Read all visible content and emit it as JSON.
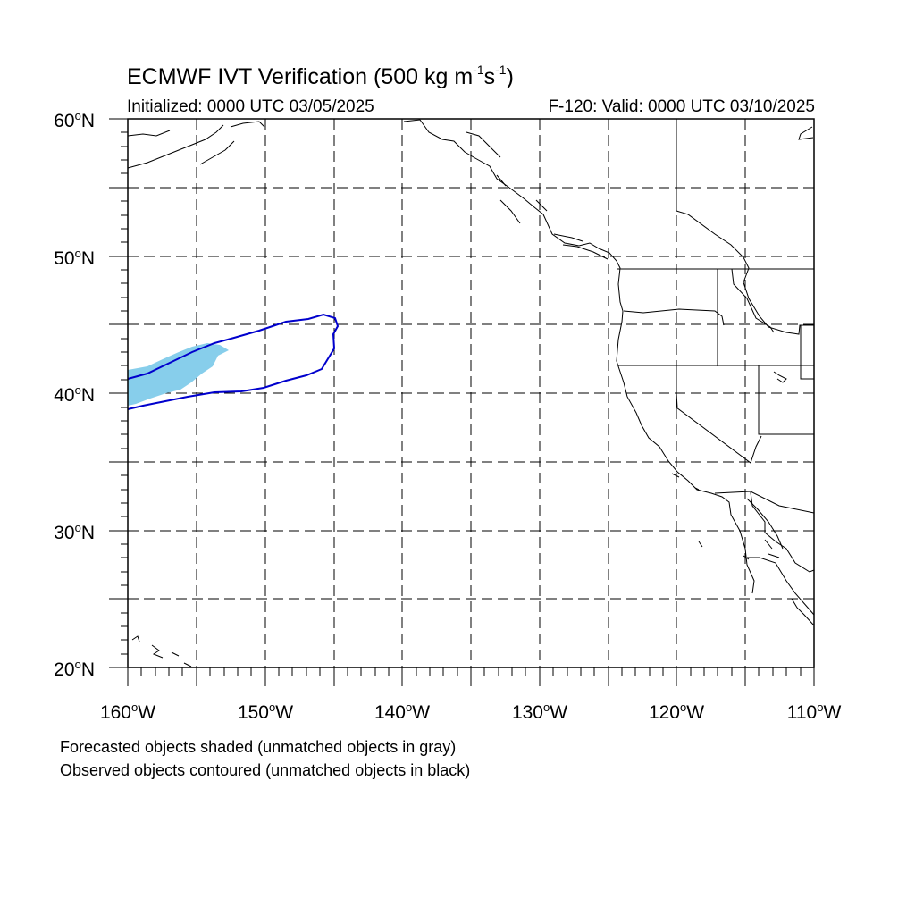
{
  "title": {
    "main": "ECMWF IVT Verification (500 kg m",
    "exp1": "-1",
    "mid": "s",
    "exp2": "-1",
    "close": ")"
  },
  "subtitle_left": "Initialized: 0000 UTC 03/05/2025",
  "subtitle_right": "F-120: Valid: 0000 UTC 03/10/2025",
  "lat_labels": [
    {
      "num": "60",
      "deg": "o",
      "hemi": "N"
    },
    {
      "num": "50",
      "deg": "o",
      "hemi": "N"
    },
    {
      "num": "40",
      "deg": "o",
      "hemi": "N"
    },
    {
      "num": "30",
      "deg": "o",
      "hemi": "N"
    },
    {
      "num": "20",
      "deg": "o",
      "hemi": "N"
    }
  ],
  "lon_labels": [
    {
      "num": "160",
      "deg": "o",
      "hemi": "W"
    },
    {
      "num": "150",
      "deg": "o",
      "hemi": "W"
    },
    {
      "num": "140",
      "deg": "o",
      "hemi": "W"
    },
    {
      "num": "130",
      "deg": "o",
      "hemi": "W"
    },
    {
      "num": "120",
      "deg": "o",
      "hemi": "W"
    },
    {
      "num": "110",
      "deg": "o",
      "hemi": "W"
    }
  ],
  "captions": {
    "line1": "Forecasted objects shaded (unmatched objects in gray)",
    "line2": "Observed objects contoured (unmatched objects in black)"
  },
  "map": {
    "lon_range": [
      -160,
      -110
    ],
    "lat_range": [
      20,
      60
    ],
    "gridlines": "dashed",
    "grid_lon_step": 5,
    "grid_lat_step": 5,
    "colors": {
      "forecast_object_fill": "#87ceeb",
      "observed_object_contour": "#0000cd",
      "coastline": "#000000",
      "grid": "#000000"
    }
  }
}
